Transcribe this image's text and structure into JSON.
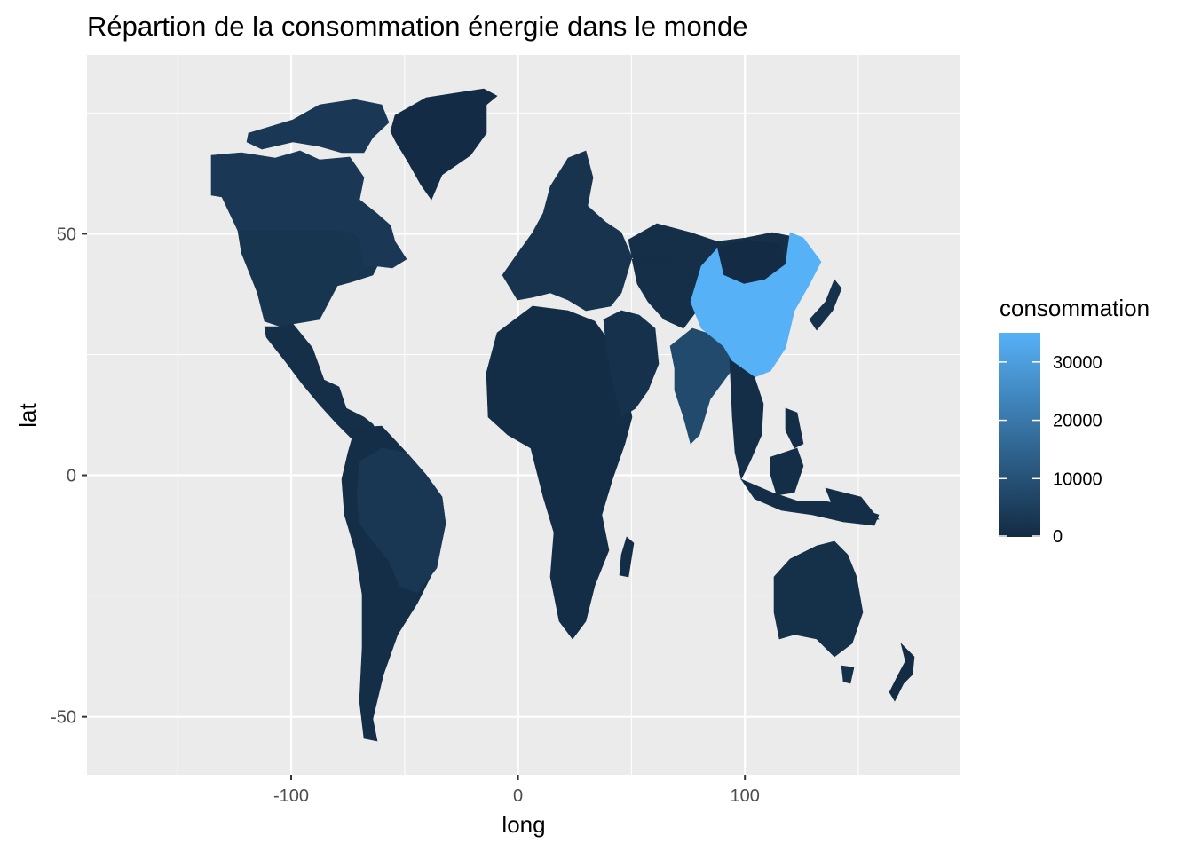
{
  "chart_data": {
    "type": "map",
    "title": "Répartion de la consommation énergie dans le monde",
    "xlabel": "long",
    "ylabel": "lat",
    "xlim": [
      -190,
      195
    ],
    "ylim": [
      -62,
      87
    ],
    "x_ticks": [
      -100,
      0,
      100
    ],
    "x_tick_labels": [
      "-100",
      "0",
      "100"
    ],
    "x_minor": [
      -150,
      -50,
      50,
      150
    ],
    "y_ticks": [
      50,
      0,
      -50
    ],
    "y_tick_labels": [
      "50",
      "0",
      "-50"
    ],
    "y_minor": [
      75,
      25,
      -25
    ],
    "grid": true,
    "legend": {
      "title": "consommation",
      "position": "right",
      "min": 0,
      "max": 35000,
      "breaks": [
        0,
        10000,
        20000,
        30000
      ],
      "break_labels": [
        "0",
        "10000",
        "20000",
        "30000"
      ],
      "low_color": "#132B43",
      "high_color": "#56B1F7"
    },
    "regions": [
      {
        "name": "Canada",
        "value": 3500
      },
      {
        "name": "United States",
        "value": 2500
      },
      {
        "name": "Greenland",
        "value": 100
      },
      {
        "name": "Mexico",
        "value": 1000
      },
      {
        "name": "Brazil",
        "value": 3000
      },
      {
        "name": "Argentina",
        "value": 800
      },
      {
        "name": "Europe",
        "value": 2000
      },
      {
        "name": "Africa",
        "value": 500
      },
      {
        "name": "Middle East",
        "value": 1500
      },
      {
        "name": "Russia",
        "value": 1000
      },
      {
        "name": "Mongolia",
        "value": 100
      },
      {
        "name": "China",
        "value": 35000
      },
      {
        "name": "India",
        "value": 8000
      },
      {
        "name": "Japan",
        "value": 1500
      },
      {
        "name": "Southeast Asia",
        "value": 800
      },
      {
        "name": "Australia",
        "value": 1200
      },
      {
        "name": "New Zealand",
        "value": 200
      }
    ]
  }
}
